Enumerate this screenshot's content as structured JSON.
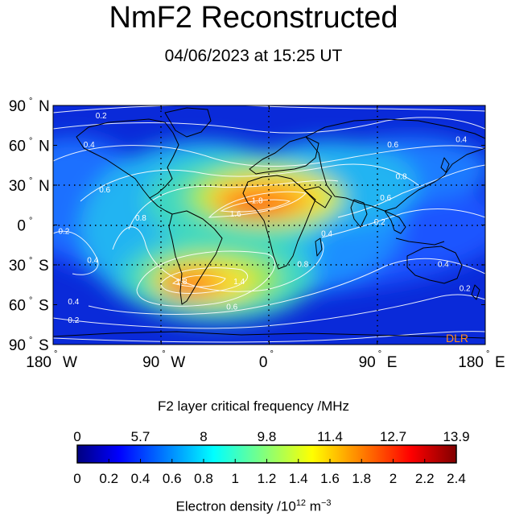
{
  "header": {
    "title": "NmF2 Reconstructed",
    "subtitle": "04/06/2023 at 15:25 UT"
  },
  "map": {
    "type": "heatmap",
    "projection": "equirectangular",
    "lon_range": [
      -180,
      180
    ],
    "lat_range": [
      -90,
      90
    ],
    "lat_ticks": [
      {
        "value": 90,
        "deg": "90",
        "hemi": "N"
      },
      {
        "value": 60,
        "deg": "60",
        "hemi": "N"
      },
      {
        "value": 30,
        "deg": "30",
        "hemi": "N"
      },
      {
        "value": 0,
        "deg": "0",
        "hemi": ""
      },
      {
        "value": -30,
        "deg": "30",
        "hemi": "S"
      },
      {
        "value": -60,
        "deg": "60",
        "hemi": "S"
      },
      {
        "value": -90,
        "deg": "90",
        "hemi": "S"
      }
    ],
    "lon_ticks": [
      {
        "value": -180,
        "deg": "180",
        "hemi": "W"
      },
      {
        "value": -90,
        "deg": "90",
        "hemi": "W"
      },
      {
        "value": 0,
        "deg": "0",
        "hemi": ""
      },
      {
        "value": 90,
        "deg": "90",
        "hemi": "E"
      },
      {
        "value": 180,
        "deg": "180",
        "hemi": "E"
      }
    ],
    "contour_labels": [
      {
        "text": "0.2",
        "lon": -140,
        "lat": 82
      },
      {
        "text": "0.4",
        "lon": -150,
        "lat": 60
      },
      {
        "text": "0.6",
        "lon": -137,
        "lat": 26
      },
      {
        "text": "0.8",
        "lon": -107,
        "lat": 5
      },
      {
        "text": "0.2",
        "lon": -171,
        "lat": -5
      },
      {
        "text": "0.4",
        "lon": -147,
        "lat": -27
      },
      {
        "text": "0.4",
        "lon": -163,
        "lat": -58
      },
      {
        "text": "0.2",
        "lon": -163,
        "lat": -72
      },
      {
        "text": "1.8",
        "lon": -10,
        "lat": 18
      },
      {
        "text": "1.6",
        "lon": -28,
        "lat": 8
      },
      {
        "text": "1.8",
        "lon": -73,
        "lat": -43
      },
      {
        "text": "1.4",
        "lon": -25,
        "lat": -43
      },
      {
        "text": "0.8",
        "lon": 28,
        "lat": -30
      },
      {
        "text": "0.6",
        "lon": -31,
        "lat": -62
      },
      {
        "text": "0.4",
        "lon": 48,
        "lat": -7
      },
      {
        "text": "0.2",
        "lon": 92,
        "lat": 2
      },
      {
        "text": "0.6",
        "lon": 97,
        "lat": 20
      },
      {
        "text": "0.8",
        "lon": 110,
        "lat": 36
      },
      {
        "text": "0.6",
        "lon": 103,
        "lat": 60
      },
      {
        "text": "0.4",
        "lon": 160,
        "lat": 64
      },
      {
        "text": "0.4",
        "lon": 145,
        "lat": -30
      },
      {
        "text": "0.2",
        "lon": 163,
        "lat": -48
      }
    ],
    "watermark": "DLR"
  },
  "colorbar": {
    "title": "F2 layer critical frequency /MHz",
    "top_ticks": [
      "0",
      "5.7",
      "8",
      "9.8",
      "11.4",
      "12.7",
      "13.9"
    ],
    "bottom_ticks": [
      "0",
      "0.2",
      "0.4",
      "0.6",
      "0.8",
      "1",
      "1.2",
      "1.4",
      "1.6",
      "1.8",
      "2",
      "2.2",
      "2.4"
    ],
    "unit_prefix": "Electron density /10",
    "unit_exp1": "12",
    "unit_mid": " m",
    "unit_exp2": "−3",
    "range": [
      0,
      2.4
    ]
  }
}
